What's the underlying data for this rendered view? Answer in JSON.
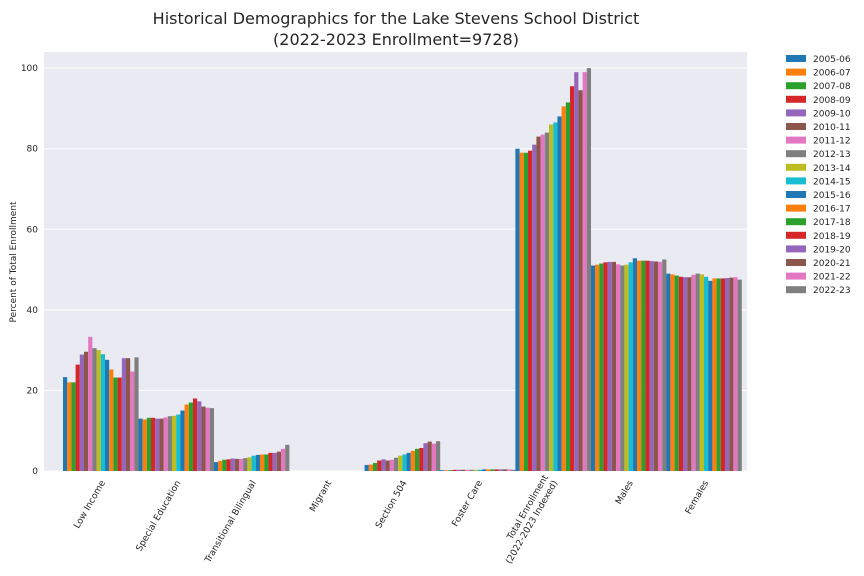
{
  "chart_data": {
    "type": "bar",
    "title_line1": "Historical Demographics for the Lake Stevens School District",
    "title_line2": "(2022-2023 Enrollment=9728)",
    "xlabel": "",
    "ylabel": "Percent of Total Enrollment",
    "ylim": [
      0,
      104
    ],
    "yticks": [
      0,
      20,
      40,
      60,
      80,
      100
    ],
    "grid": true,
    "legend_position": "outside-right",
    "categories": [
      "Low Income",
      "Special Education",
      "Transitional Bilingual",
      "Migrant",
      "Section 504",
      "Foster Care",
      "Total Enrollment\n(2022-2023 Indexed)",
      "Males",
      "Females"
    ],
    "series": [
      {
        "name": "2005-06",
        "color": "#1f77b4",
        "values": [
          23.3,
          13.0,
          2.2,
          0,
          1.5,
          0.2,
          80.0,
          51.0,
          49.0
        ]
      },
      {
        "name": "2006-07",
        "color": "#ff7f0e",
        "values": [
          22.0,
          12.8,
          2.5,
          0,
          1.6,
          0.2,
          79.0,
          51.2,
          48.8
        ]
      },
      {
        "name": "2007-08",
        "color": "#2ca02c",
        "values": [
          22.0,
          13.2,
          2.8,
          0,
          2.0,
          0.2,
          79.0,
          51.5,
          48.5
        ]
      },
      {
        "name": "2008-09",
        "color": "#d62728",
        "values": [
          26.4,
          13.2,
          2.9,
          0,
          2.6,
          0.3,
          79.5,
          51.8,
          48.2
        ]
      },
      {
        "name": "2009-10",
        "color": "#9467bd",
        "values": [
          28.9,
          13.0,
          3.1,
          0,
          2.9,
          0.3,
          81.0,
          51.9,
          48.1
        ]
      },
      {
        "name": "2010-11",
        "color": "#8c564b",
        "values": [
          29.6,
          13.0,
          3.0,
          0,
          2.6,
          0.3,
          83.0,
          51.9,
          48.1
        ]
      },
      {
        "name": "2011-12",
        "color": "#e377c2",
        "values": [
          33.3,
          13.3,
          3.0,
          0,
          2.8,
          0.3,
          83.5,
          51.3,
          48.7
        ]
      },
      {
        "name": "2012-13",
        "color": "#7f7f7f",
        "values": [
          30.5,
          13.6,
          3.2,
          0,
          3.3,
          0.3,
          84.0,
          51.0,
          49.0
        ]
      },
      {
        "name": "2013-14",
        "color": "#bcbd22",
        "values": [
          30.0,
          13.7,
          3.4,
          0,
          3.8,
          0.3,
          86.0,
          51.2,
          48.8
        ]
      },
      {
        "name": "2014-15",
        "color": "#17becf",
        "values": [
          29.0,
          14.0,
          3.8,
          0,
          4.1,
          0.3,
          86.5,
          51.8,
          48.2
        ]
      },
      {
        "name": "2015-16",
        "color": "#1f77b4",
        "values": [
          27.6,
          15.0,
          4.0,
          0,
          4.5,
          0.4,
          88.0,
          52.8,
          47.2
        ]
      },
      {
        "name": "2016-17",
        "color": "#ff7f0e",
        "values": [
          25.2,
          16.5,
          4.1,
          0,
          5.0,
          0.4,
          90.5,
          52.2,
          47.8
        ]
      },
      {
        "name": "2017-18",
        "color": "#2ca02c",
        "values": [
          23.2,
          17.0,
          4.1,
          0,
          5.5,
          0.4,
          91.5,
          52.2,
          47.8
        ]
      },
      {
        "name": "2018-19",
        "color": "#d62728",
        "values": [
          23.2,
          18.0,
          4.5,
          0,
          5.7,
          0.4,
          95.5,
          52.2,
          47.8
        ]
      },
      {
        "name": "2019-20",
        "color": "#9467bd",
        "values": [
          28.0,
          17.3,
          4.5,
          0,
          6.9,
          0.4,
          99.0,
          52.1,
          47.9
        ]
      },
      {
        "name": "2020-21",
        "color": "#8c564b",
        "values": [
          28.0,
          16.0,
          4.8,
          0,
          7.3,
          0.4,
          94.5,
          52.0,
          48.0
        ]
      },
      {
        "name": "2021-22",
        "color": "#e377c2",
        "values": [
          24.7,
          15.7,
          5.5,
          0,
          6.8,
          0.4,
          99.0,
          51.9,
          48.1
        ]
      },
      {
        "name": "2022-23",
        "color": "#7f7f7f",
        "values": [
          28.2,
          15.6,
          6.5,
          0,
          7.4,
          0.3,
          100.0,
          52.5,
          47.5
        ]
      }
    ]
  }
}
